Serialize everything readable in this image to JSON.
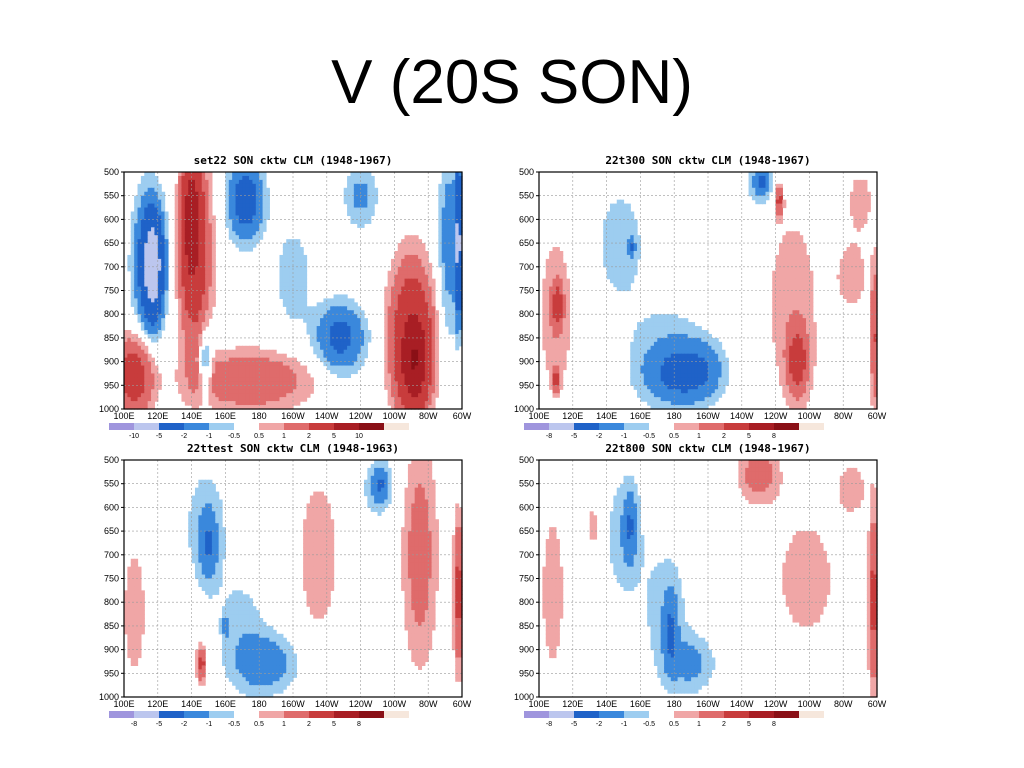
{
  "slide": {
    "title": "V (20S SON)"
  },
  "palette": {
    "neg": [
      "#9f95dd",
      "#bcc6ee",
      "#1f62c8",
      "#3a88dc",
      "#9dcdf0"
    ],
    "pos": [
      "#f0a6a6",
      "#df6b6b",
      "#c83c3c",
      "#a81e24",
      "#8a1016",
      "#f6e7dc"
    ]
  },
  "chart_data": [
    {
      "type": "heatmap",
      "title": "set22 SON cktw CLM (1948-1967)",
      "x_tick_labels": [
        "100E",
        "120E",
        "140E",
        "160E",
        "180",
        "160W",
        "140W",
        "120W",
        "100W",
        "80W",
        "60W"
      ],
      "y_tick_labels": [
        "500",
        "550",
        "600",
        "650",
        "700",
        "750",
        "800",
        "850",
        "900",
        "950",
        "1000"
      ],
      "xlim": [
        100,
        300
      ],
      "ylim": [
        1000,
        500
      ],
      "contour_levels": [
        "-10",
        "-5",
        "-2",
        "-1",
        "-0.5",
        "0.5",
        "1",
        "2",
        "5",
        "10"
      ],
      "blobs": [
        {
          "x": 115,
          "p": 690,
          "rx": 9,
          "rp": 140,
          "v": -3
        },
        {
          "x": 117,
          "p": 700,
          "rx": 5,
          "rp": 90,
          "v": -6
        },
        {
          "x": 142,
          "p": 680,
          "rx": 9,
          "rp": 200,
          "v": 3
        },
        {
          "x": 140,
          "p": 600,
          "rx": 5,
          "rp": 120,
          "v": 6
        },
        {
          "x": 106,
          "p": 930,
          "rx": 11,
          "rp": 80,
          "v": 3
        },
        {
          "x": 148,
          "p": 900,
          "rx": 4,
          "rp": 70,
          "v": -2
        },
        {
          "x": 175,
          "p": 940,
          "rx": 34,
          "rp": 60,
          "v": 2
        },
        {
          "x": 172,
          "p": 560,
          "rx": 10,
          "rp": 80,
          "v": -3
        },
        {
          "x": 200,
          "p": 720,
          "rx": 12,
          "rp": 120,
          "v": -0.8
        },
        {
          "x": 228,
          "p": 850,
          "rx": 14,
          "rp": 70,
          "v": -2.5
        },
        {
          "x": 240,
          "p": 550,
          "rx": 10,
          "rp": 70,
          "v": -1.2
        },
        {
          "x": 270,
          "p": 850,
          "rx": 12,
          "rp": 150,
          "v": 4
        },
        {
          "x": 272,
          "p": 900,
          "rx": 7,
          "rp": 80,
          "v": 7
        },
        {
          "x": 292,
          "p": 650,
          "rx": 6,
          "rp": 200,
          "v": -1.5
        },
        {
          "x": 298,
          "p": 650,
          "rx": 2,
          "rp": 140,
          "v": -6
        }
      ]
    },
    {
      "type": "heatmap",
      "title": "22t300 SON cktw CLM (1948-1967)",
      "x_tick_labels": [
        "100E",
        "120E",
        "140E",
        "160E",
        "180",
        "160W",
        "140W",
        "120W",
        "100W",
        "80W",
        "60W"
      ],
      "y_tick_labels": [
        "500",
        "550",
        "600",
        "650",
        "700",
        "750",
        "800",
        "850",
        "900",
        "950",
        "1000"
      ],
      "xlim": [
        100,
        300
      ],
      "ylim": [
        1000,
        500
      ],
      "contour_levels": [
        "-8",
        "-5",
        "-2",
        "-1",
        "-0.5",
        "0.5",
        "1",
        "2",
        "5",
        "8"
      ],
      "blobs": [
        {
          "x": 110,
          "p": 800,
          "rx": 10,
          "rp": 170,
          "v": 1
        },
        {
          "x": 111,
          "p": 780,
          "rx": 3,
          "rp": 40,
          "v": 2.5
        },
        {
          "x": 110,
          "p": 940,
          "rx": 2,
          "rp": 25,
          "v": 2.5
        },
        {
          "x": 148,
          "p": 650,
          "rx": 16,
          "rp": 130,
          "v": -0.8
        },
        {
          "x": 175,
          "p": 880,
          "rx": 25,
          "rp": 110,
          "v": -0.8
        },
        {
          "x": 180,
          "p": 930,
          "rx": 18,
          "rp": 60,
          "v": -1.5
        },
        {
          "x": 195,
          "p": 920,
          "rx": 15,
          "rp": 60,
          "v": -1.5
        },
        {
          "x": 155,
          "p": 660,
          "rx": 2,
          "rp": 20,
          "v": -1.5
        },
        {
          "x": 230,
          "p": 530,
          "rx": 9,
          "rp": 60,
          "v": -0.8
        },
        {
          "x": 232,
          "p": 520,
          "rx": 4,
          "rp": 25,
          "v": -2
        },
        {
          "x": 250,
          "p": 780,
          "rx": 18,
          "rp": 230,
          "v": 0.8
        },
        {
          "x": 253,
          "p": 900,
          "rx": 6,
          "rp": 70,
          "v": 2.5
        },
        {
          "x": 242,
          "p": 560,
          "rx": 2,
          "rp": 30,
          "v": 2.5
        },
        {
          "x": 290,
          "p": 560,
          "rx": 8,
          "rp": 70,
          "v": 0.8
        },
        {
          "x": 285,
          "p": 720,
          "rx": 10,
          "rp": 80,
          "v": 0.8
        },
        {
          "x": 299,
          "p": 850,
          "rx": 3,
          "rp": 150,
          "v": 2
        }
      ]
    },
    {
      "type": "heatmap",
      "title": "22ttest SON cktw CLM (1948-1963)",
      "x_tick_labels": [
        "100E",
        "120E",
        "140E",
        "160E",
        "180",
        "160W",
        "140W",
        "120W",
        "100W",
        "80W",
        "60W"
      ],
      "y_tick_labels": [
        "500",
        "550",
        "600",
        "650",
        "700",
        "750",
        "800",
        "850",
        "900",
        "950",
        "1000"
      ],
      "xlim": [
        100,
        300
      ],
      "ylim": [
        1000,
        500
      ],
      "contour_levels": [
        "-8",
        "-5",
        "-2",
        "-1",
        "-0.5",
        "0.5",
        "1",
        "2",
        "5",
        "8"
      ],
      "blobs": [
        {
          "x": 106,
          "p": 820,
          "rx": 8,
          "rp": 170,
          "v": 0.8
        },
        {
          "x": 148,
          "p": 640,
          "rx": 14,
          "rp": 140,
          "v": -0.8
        },
        {
          "x": 150,
          "p": 680,
          "rx": 5,
          "rp": 70,
          "v": -1.5
        },
        {
          "x": 170,
          "p": 860,
          "rx": 16,
          "rp": 130,
          "v": -0.7
        },
        {
          "x": 185,
          "p": 930,
          "rx": 18,
          "rp": 60,
          "v": -1.5
        },
        {
          "x": 160,
          "p": 850,
          "rx": 2,
          "rp": 20,
          "v": -1.5
        },
        {
          "x": 145,
          "p": 930,
          "rx": 4,
          "rp": 60,
          "v": 0.8
        },
        {
          "x": 146,
          "p": 930,
          "rx": 2,
          "rp": 30,
          "v": 2
        },
        {
          "x": 215,
          "p": 700,
          "rx": 14,
          "rp": 200,
          "v": 0.8
        },
        {
          "x": 250,
          "p": 560,
          "rx": 10,
          "rp": 70,
          "v": -0.8
        },
        {
          "x": 252,
          "p": 550,
          "rx": 5,
          "rp": 35,
          "v": -1.5
        },
        {
          "x": 275,
          "p": 700,
          "rx": 10,
          "rp": 230,
          "v": 1.5
        },
        {
          "x": 298,
          "p": 780,
          "rx": 3,
          "rp": 150,
          "v": 2.5
        }
      ]
    },
    {
      "type": "heatmap",
      "title": "22t800 SON cktw CLM (1948-1967)",
      "x_tick_labels": [
        "100E",
        "120E",
        "140E",
        "160E",
        "180",
        "160W",
        "140W",
        "120W",
        "100W",
        "80W",
        "60W"
      ],
      "y_tick_labels": [
        "500",
        "550",
        "600",
        "650",
        "700",
        "750",
        "800",
        "850",
        "900",
        "950",
        "1000"
      ],
      "xlim": [
        100,
        300
      ],
      "ylim": [
        1000,
        500
      ],
      "contour_levels": [
        "-8",
        "-5",
        "-2",
        "-1",
        "-0.5",
        "0.5",
        "1",
        "2",
        "5",
        "8"
      ],
      "blobs": [
        {
          "x": 108,
          "p": 780,
          "rx": 8,
          "rp": 200,
          "v": 0.8
        },
        {
          "x": 132,
          "p": 640,
          "rx": 3,
          "rp": 60,
          "v": 0.8
        },
        {
          "x": 150,
          "p": 660,
          "rx": 12,
          "rp": 150,
          "v": -0.8
        },
        {
          "x": 154,
          "p": 640,
          "rx": 4,
          "rp": 70,
          "v": -1.5
        },
        {
          "x": 175,
          "p": 820,
          "rx": 14,
          "rp": 150,
          "v": -0.8
        },
        {
          "x": 178,
          "p": 860,
          "rx": 4,
          "rp": 80,
          "v": -1.5
        },
        {
          "x": 190,
          "p": 930,
          "rx": 14,
          "rp": 60,
          "v": -1.2
        },
        {
          "x": 230,
          "p": 530,
          "rx": 12,
          "rp": 60,
          "v": 1.5
        },
        {
          "x": 258,
          "p": 750,
          "rx": 20,
          "rp": 150,
          "v": 0.8
        },
        {
          "x": 285,
          "p": 560,
          "rx": 10,
          "rp": 60,
          "v": 0.8
        },
        {
          "x": 298,
          "p": 800,
          "rx": 3,
          "rp": 180,
          "v": 2.5
        }
      ]
    }
  ]
}
